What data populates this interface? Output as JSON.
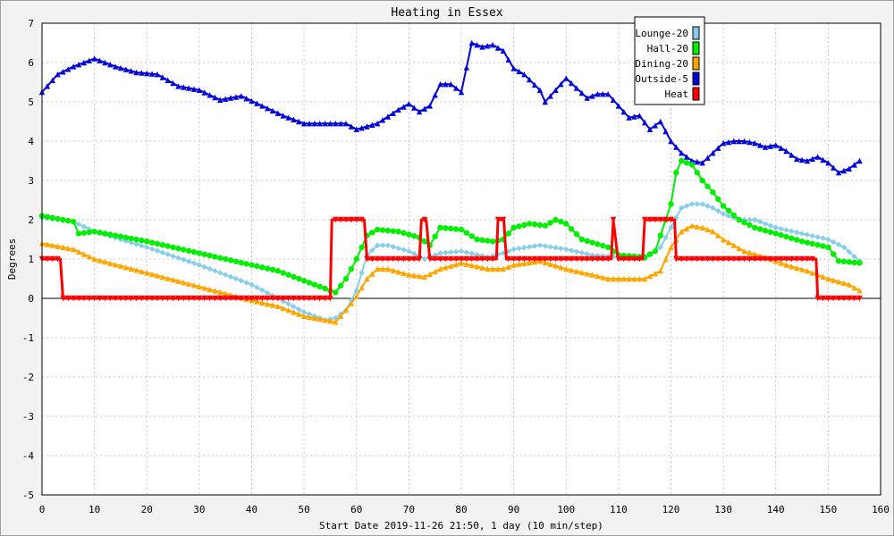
{
  "chart_data": {
    "type": "line",
    "title": "Heating in Essex",
    "xlabel": "Start Date 2019-11-26 21:50, 1 day (10 min/step)",
    "ylabel": "Degrees",
    "xlim": [
      0,
      160
    ],
    "ylim": [
      -5,
      7
    ],
    "xticks": [
      "0",
      "10",
      "20",
      "30",
      "40",
      "50",
      "60",
      "70",
      "80",
      "90",
      "100",
      "110",
      "120",
      "130",
      "140",
      "150",
      "160"
    ],
    "yticks": [
      "-5",
      "-4",
      "-3",
      "-2",
      "-1",
      "0",
      "1",
      "2",
      "3",
      "4",
      "5",
      "6",
      "7"
    ],
    "grid": true,
    "legend_position": "top-right",
    "series": [
      {
        "name": "Lounge-20",
        "color": "#87ceeb",
        "marker": "diamond",
        "points": [
          [
            0,
            2.05
          ],
          [
            6,
            1.95
          ],
          [
            10,
            1.7
          ],
          [
            20,
            1.3
          ],
          [
            30,
            0.85
          ],
          [
            40,
            0.35
          ],
          [
            45,
            0
          ],
          [
            50,
            -0.35
          ],
          [
            54,
            -0.55
          ],
          [
            56,
            -0.5
          ],
          [
            58,
            -0.3
          ],
          [
            60,
            0.2
          ],
          [
            62,
            1.1
          ],
          [
            64,
            1.35
          ],
          [
            66,
            1.35
          ],
          [
            70,
            1.2
          ],
          [
            73,
            1.0
          ],
          [
            76,
            1.15
          ],
          [
            80,
            1.2
          ],
          [
            85,
            1.05
          ],
          [
            88,
            1.15
          ],
          [
            90,
            1.25
          ],
          [
            95,
            1.35
          ],
          [
            100,
            1.25
          ],
          [
            105,
            1.1
          ],
          [
            110,
            1.05
          ],
          [
            115,
            1.0
          ],
          [
            118,
            1.3
          ],
          [
            120,
            1.8
          ],
          [
            122,
            2.3
          ],
          [
            124,
            2.4
          ],
          [
            126,
            2.4
          ],
          [
            128,
            2.3
          ],
          [
            130,
            2.15
          ],
          [
            133,
            2.0
          ],
          [
            136,
            2.0
          ],
          [
            140,
            1.8
          ],
          [
            145,
            1.65
          ],
          [
            150,
            1.5
          ],
          [
            153,
            1.3
          ],
          [
            156,
            0.95
          ]
        ]
      },
      {
        "name": "Hall-20",
        "color": "#00ee00",
        "marker": "circle",
        "points": [
          [
            0,
            2.1
          ],
          [
            6,
            1.95
          ],
          [
            7,
            1.65
          ],
          [
            10,
            1.7
          ],
          [
            20,
            1.45
          ],
          [
            30,
            1.15
          ],
          [
            40,
            0.85
          ],
          [
            45,
            0.7
          ],
          [
            50,
            0.45
          ],
          [
            54,
            0.25
          ],
          [
            56,
            0.15
          ],
          [
            58,
            0.5
          ],
          [
            60,
            1.0
          ],
          [
            62,
            1.6
          ],
          [
            64,
            1.75
          ],
          [
            68,
            1.7
          ],
          [
            72,
            1.55
          ],
          [
            74,
            1.35
          ],
          [
            76,
            1.8
          ],
          [
            80,
            1.75
          ],
          [
            83,
            1.5
          ],
          [
            86,
            1.45
          ],
          [
            88,
            1.5
          ],
          [
            90,
            1.8
          ],
          [
            93,
            1.9
          ],
          [
            96,
            1.85
          ],
          [
            98,
            2.0
          ],
          [
            100,
            1.9
          ],
          [
            103,
            1.5
          ],
          [
            108,
            1.3
          ],
          [
            110,
            1.1
          ],
          [
            115,
            1.05
          ],
          [
            117,
            1.2
          ],
          [
            118,
            1.6
          ],
          [
            120,
            2.4
          ],
          [
            121,
            3.2
          ],
          [
            122,
            3.5
          ],
          [
            124,
            3.4
          ],
          [
            126,
            3.0
          ],
          [
            128,
            2.7
          ],
          [
            130,
            2.35
          ],
          [
            133,
            2.0
          ],
          [
            136,
            1.8
          ],
          [
            140,
            1.65
          ],
          [
            145,
            1.45
          ],
          [
            150,
            1.3
          ],
          [
            152,
            0.95
          ],
          [
            156,
            0.9
          ]
        ]
      },
      {
        "name": "Dining-20",
        "color": "#ffa500",
        "marker": "triangle",
        "points": [
          [
            0,
            1.4
          ],
          [
            6,
            1.25
          ],
          [
            10,
            1.0
          ],
          [
            20,
            0.65
          ],
          [
            30,
            0.3
          ],
          [
            40,
            -0.05
          ],
          [
            45,
            -0.2
          ],
          [
            50,
            -0.45
          ],
          [
            54,
            -0.55
          ],
          [
            56,
            -0.6
          ],
          [
            58,
            -0.3
          ],
          [
            60,
            0.05
          ],
          [
            62,
            0.5
          ],
          [
            64,
            0.75
          ],
          [
            66,
            0.75
          ],
          [
            70,
            0.6
          ],
          [
            73,
            0.55
          ],
          [
            76,
            0.75
          ],
          [
            80,
            0.9
          ],
          [
            85,
            0.75
          ],
          [
            88,
            0.75
          ],
          [
            90,
            0.85
          ],
          [
            95,
            0.95
          ],
          [
            100,
            0.75
          ],
          [
            105,
            0.6
          ],
          [
            108,
            0.5
          ],
          [
            115,
            0.5
          ],
          [
            118,
            0.7
          ],
          [
            120,
            1.3
          ],
          [
            122,
            1.7
          ],
          [
            124,
            1.85
          ],
          [
            126,
            1.8
          ],
          [
            128,
            1.7
          ],
          [
            130,
            1.5
          ],
          [
            134,
            1.2
          ],
          [
            138,
            1.05
          ],
          [
            142,
            0.85
          ],
          [
            146,
            0.7
          ],
          [
            150,
            0.5
          ],
          [
            154,
            0.35
          ],
          [
            156,
            0.2
          ]
        ]
      },
      {
        "name": "Outside-5",
        "color": "#0000dd",
        "marker": "triangle",
        "points": [
          [
            0,
            5.25
          ],
          [
            3,
            5.7
          ],
          [
            6,
            5.9
          ],
          [
            10,
            6.1
          ],
          [
            14,
            5.9
          ],
          [
            18,
            5.75
          ],
          [
            22,
            5.7
          ],
          [
            26,
            5.4
          ],
          [
            30,
            5.3
          ],
          [
            34,
            5.05
          ],
          [
            38,
            5.15
          ],
          [
            42,
            4.9
          ],
          [
            46,
            4.65
          ],
          [
            50,
            4.45
          ],
          [
            54,
            4.45
          ],
          [
            58,
            4.45
          ],
          [
            60,
            4.3
          ],
          [
            64,
            4.45
          ],
          [
            68,
            4.8
          ],
          [
            70,
            4.95
          ],
          [
            72,
            4.75
          ],
          [
            74,
            4.9
          ],
          [
            76,
            5.45
          ],
          [
            78,
            5.45
          ],
          [
            80,
            5.25
          ],
          [
            82,
            6.5
          ],
          [
            84,
            6.4
          ],
          [
            86,
            6.45
          ],
          [
            88,
            6.3
          ],
          [
            90,
            5.85
          ],
          [
            92,
            5.7
          ],
          [
            95,
            5.3
          ],
          [
            96,
            5.0
          ],
          [
            98,
            5.3
          ],
          [
            100,
            5.6
          ],
          [
            102,
            5.35
          ],
          [
            104,
            5.1
          ],
          [
            106,
            5.2
          ],
          [
            108,
            5.2
          ],
          [
            110,
            4.9
          ],
          [
            112,
            4.6
          ],
          [
            114,
            4.65
          ],
          [
            116,
            4.3
          ],
          [
            118,
            4.5
          ],
          [
            120,
            4.0
          ],
          [
            122,
            3.7
          ],
          [
            124,
            3.5
          ],
          [
            126,
            3.45
          ],
          [
            128,
            3.7
          ],
          [
            130,
            3.95
          ],
          [
            132,
            4.0
          ],
          [
            134,
            4.0
          ],
          [
            136,
            3.95
          ],
          [
            138,
            3.85
          ],
          [
            140,
            3.9
          ],
          [
            142,
            3.75
          ],
          [
            144,
            3.55
          ],
          [
            146,
            3.5
          ],
          [
            148,
            3.6
          ],
          [
            150,
            3.45
          ],
          [
            152,
            3.2
          ],
          [
            154,
            3.3
          ],
          [
            156,
            3.5
          ]
        ]
      },
      {
        "name": "Heat",
        "color": "#ff0000",
        "marker": "triangle-down",
        "points": [
          [
            0,
            1
          ],
          [
            3.5,
            1
          ],
          [
            4,
            0
          ],
          [
            55,
            0
          ],
          [
            55.3,
            2
          ],
          [
            61.5,
            2
          ],
          [
            62,
            1
          ],
          [
            72,
            1
          ],
          [
            72.4,
            2
          ],
          [
            73.3,
            2
          ],
          [
            74,
            1
          ],
          [
            86.7,
            1
          ],
          [
            87,
            2
          ],
          [
            88.1,
            2
          ],
          [
            88.6,
            1
          ],
          [
            108.6,
            1
          ],
          [
            109,
            2
          ],
          [
            109.9,
            1
          ],
          [
            114.6,
            1
          ],
          [
            115,
            2
          ],
          [
            120.7,
            2
          ],
          [
            121,
            1
          ],
          [
            147.7,
            1
          ],
          [
            148,
            0
          ],
          [
            156,
            0
          ]
        ]
      }
    ]
  }
}
